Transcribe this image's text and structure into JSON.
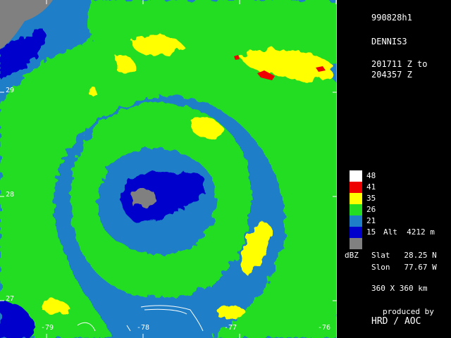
{
  "map": {
    "lat_labels": [
      "29",
      "28",
      "27"
    ],
    "lon_labels": [
      "-79",
      "-78",
      "-77",
      "-76"
    ]
  },
  "info": {
    "flight_id": "990828h1",
    "storm": "DENNIS3",
    "time_start": "201711 Z to",
    "time_end": "204357 Z",
    "units": "dBZ",
    "altitude": "Alt  4212 m",
    "slat": "Slat   28.25 N",
    "slon": "Slon   77.67 W",
    "domain": "360 X 360 km",
    "produced_by": "produced by",
    "producer": "HRD / AOC"
  },
  "legend": {
    "levels": [
      {
        "label": "48",
        "color": "#ffffff"
      },
      {
        "label": "41",
        "color": "#ee0000"
      },
      {
        "label": "35",
        "color": "#ffff00"
      },
      {
        "label": "26",
        "color": "#22dd22"
      },
      {
        "label": "21",
        "color": "#1e7fc8"
      },
      {
        "label": "15",
        "color": "#0000cc"
      },
      {
        "label": "",
        "color": "#808080"
      }
    ]
  },
  "colors": {
    "background": "#000000",
    "grid": "#ffffff",
    "coast": "#ffffff"
  }
}
